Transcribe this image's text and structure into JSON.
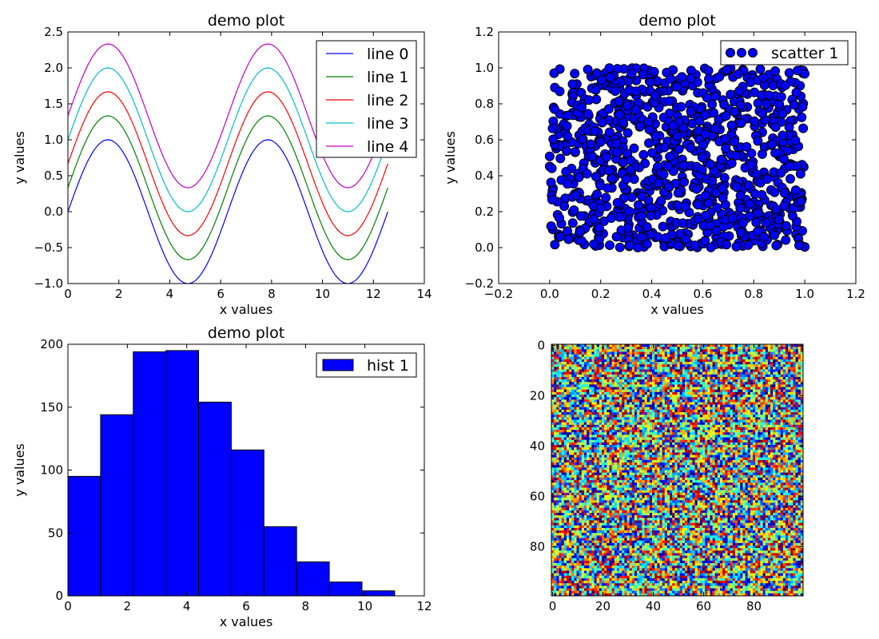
{
  "chart_data": [
    {
      "type": "line",
      "title": "demo plot",
      "xlabel": "x values",
      "ylabel": "y values",
      "xlim": [
        0,
        14
      ],
      "ylim": [
        -1.0,
        2.5
      ],
      "xticks": [
        0,
        2,
        4,
        6,
        8,
        10,
        12,
        14
      ],
      "xtick_labels": [
        "0",
        "2",
        "4",
        "6",
        "8",
        "10",
        "12",
        "14"
      ],
      "yticks": [
        -1.0,
        -0.5,
        0.0,
        0.5,
        1.0,
        1.5,
        2.0,
        2.5
      ],
      "ytick_labels": [
        "−1.0",
        "−0.5",
        "0.0",
        "0.5",
        "1.0",
        "1.5",
        "2.0",
        "2.5"
      ],
      "legend_position": "top-right",
      "x": [
        0.0,
        0.5,
        1.0,
        1.5708,
        2.0,
        2.5,
        3.0,
        3.5,
        4.0,
        4.7124,
        5.5,
        6.0,
        6.5,
        7.0,
        7.854,
        8.5,
        9.0,
        9.5,
        10.0,
        10.5,
        10.9956,
        11.5,
        12.0,
        12.566
      ],
      "series": [
        {
          "name": "line 0",
          "color": "#0000ff",
          "offset": 0.0,
          "values": [
            0.0,
            0.479,
            0.841,
            1.0,
            0.909,
            0.598,
            0.141,
            -0.351,
            -0.757,
            -1.0,
            -0.706,
            -0.279,
            0.215,
            0.657,
            1.0,
            0.798,
            0.412,
            -0.075,
            -0.544,
            -0.88,
            -1.0,
            -0.875,
            -0.537,
            0.0
          ]
        },
        {
          "name": "line 1",
          "color": "#008000",
          "offset": 0.333,
          "values": [
            0.333,
            0.812,
            1.174,
            1.333,
            1.242,
            0.931,
            0.474,
            -0.018,
            -0.424,
            -0.667,
            -0.373,
            0.054,
            0.548,
            0.99,
            1.333,
            1.131,
            0.745,
            0.258,
            -0.211,
            -0.547,
            -0.667,
            -0.542,
            -0.204,
            0.333
          ]
        },
        {
          "name": "line 2",
          "color": "#ff0000",
          "offset": 0.667,
          "values": [
            0.667,
            1.146,
            1.508,
            1.667,
            1.576,
            1.265,
            0.808,
            0.316,
            -0.09,
            -0.333,
            -0.039,
            0.388,
            0.882,
            1.324,
            1.667,
            1.465,
            1.079,
            0.592,
            0.123,
            -0.213,
            -0.333,
            -0.208,
            0.13,
            0.667
          ]
        },
        {
          "name": "line 3",
          "color": "#00bfbf",
          "offset": 1.0,
          "values": [
            1.0,
            1.479,
            1.841,
            2.0,
            1.909,
            1.598,
            1.141,
            0.649,
            0.243,
            0.0,
            0.294,
            0.721,
            1.215,
            1.657,
            2.0,
            1.798,
            1.412,
            0.925,
            0.456,
            0.12,
            0.0,
            0.125,
            0.463,
            1.0
          ]
        },
        {
          "name": "line 4",
          "color": "#bf00bf",
          "offset": 1.333,
          "values": [
            1.333,
            1.812,
            2.174,
            2.333,
            2.242,
            1.931,
            1.474,
            0.982,
            0.576,
            0.333,
            0.627,
            1.054,
            1.548,
            1.99,
            2.333,
            2.131,
            1.745,
            1.258,
            0.789,
            0.453,
            0.333,
            0.458,
            0.796,
            1.333
          ]
        }
      ]
    },
    {
      "type": "scatter",
      "title": "demo plot",
      "xlabel": "x values",
      "ylabel": "y values",
      "xlim": [
        -0.2,
        1.2
      ],
      "ylim": [
        -0.2,
        1.2
      ],
      "xticks": [
        -0.2,
        0.0,
        0.2,
        0.4,
        0.6,
        0.8,
        1.0,
        1.2
      ],
      "xtick_labels": [
        "−0.2",
        "0.0",
        "0.2",
        "0.4",
        "0.6",
        "0.8",
        "1.0",
        "1.2"
      ],
      "yticks": [
        -0.2,
        0.0,
        0.2,
        0.4,
        0.6,
        0.8,
        1.0,
        1.2
      ],
      "ytick_labels": [
        "−0.2",
        "0.0",
        "0.2",
        "0.4",
        "0.6",
        "0.8",
        "1.0",
        "1.2"
      ],
      "legend_position": "top-right",
      "series": [
        {
          "name": "scatter 1",
          "color": "#0000ff",
          "count": 1000,
          "distribution": "uniform",
          "x_range": [
            0,
            1
          ],
          "y_range": [
            0,
            1
          ]
        }
      ]
    },
    {
      "type": "bar",
      "title": "demo plot",
      "xlabel": "x values",
      "ylabel": "y values",
      "xlim": [
        0,
        12
      ],
      "ylim": [
        0,
        200
      ],
      "xticks": [
        0,
        2,
        4,
        6,
        8,
        10,
        12
      ],
      "xtick_labels": [
        "0",
        "2",
        "4",
        "6",
        "8",
        "10",
        "12"
      ],
      "yticks": [
        0,
        50,
        100,
        150,
        200
      ],
      "ytick_labels": [
        "0",
        "50",
        "100",
        "150",
        "200"
      ],
      "legend_position": "top-right",
      "bin_edges": [
        0.0,
        1.1,
        2.2,
        3.3,
        4.4,
        5.5,
        6.6,
        7.7,
        8.8,
        9.9,
        11.0
      ],
      "series": [
        {
          "name": "hist 1",
          "color": "#0000ff",
          "values": [
            95,
            144,
            194,
            195,
            154,
            116,
            55,
            27,
            11,
            4
          ]
        }
      ]
    },
    {
      "type": "heatmap",
      "title": "",
      "rows": 100,
      "cols": 100,
      "colormap": "jet",
      "value_range": [
        0,
        1
      ],
      "distribution": "uniform random",
      "xlim": [
        -0.5,
        99.5
      ],
      "ylim": [
        99.5,
        -0.5
      ],
      "xticks": [
        0,
        20,
        40,
        60,
        80
      ],
      "xtick_labels": [
        "0",
        "20",
        "40",
        "60",
        "80"
      ],
      "yticks": [
        0,
        20,
        40,
        60,
        80
      ],
      "ytick_labels": [
        "0",
        "20",
        "40",
        "60",
        "80"
      ]
    }
  ]
}
